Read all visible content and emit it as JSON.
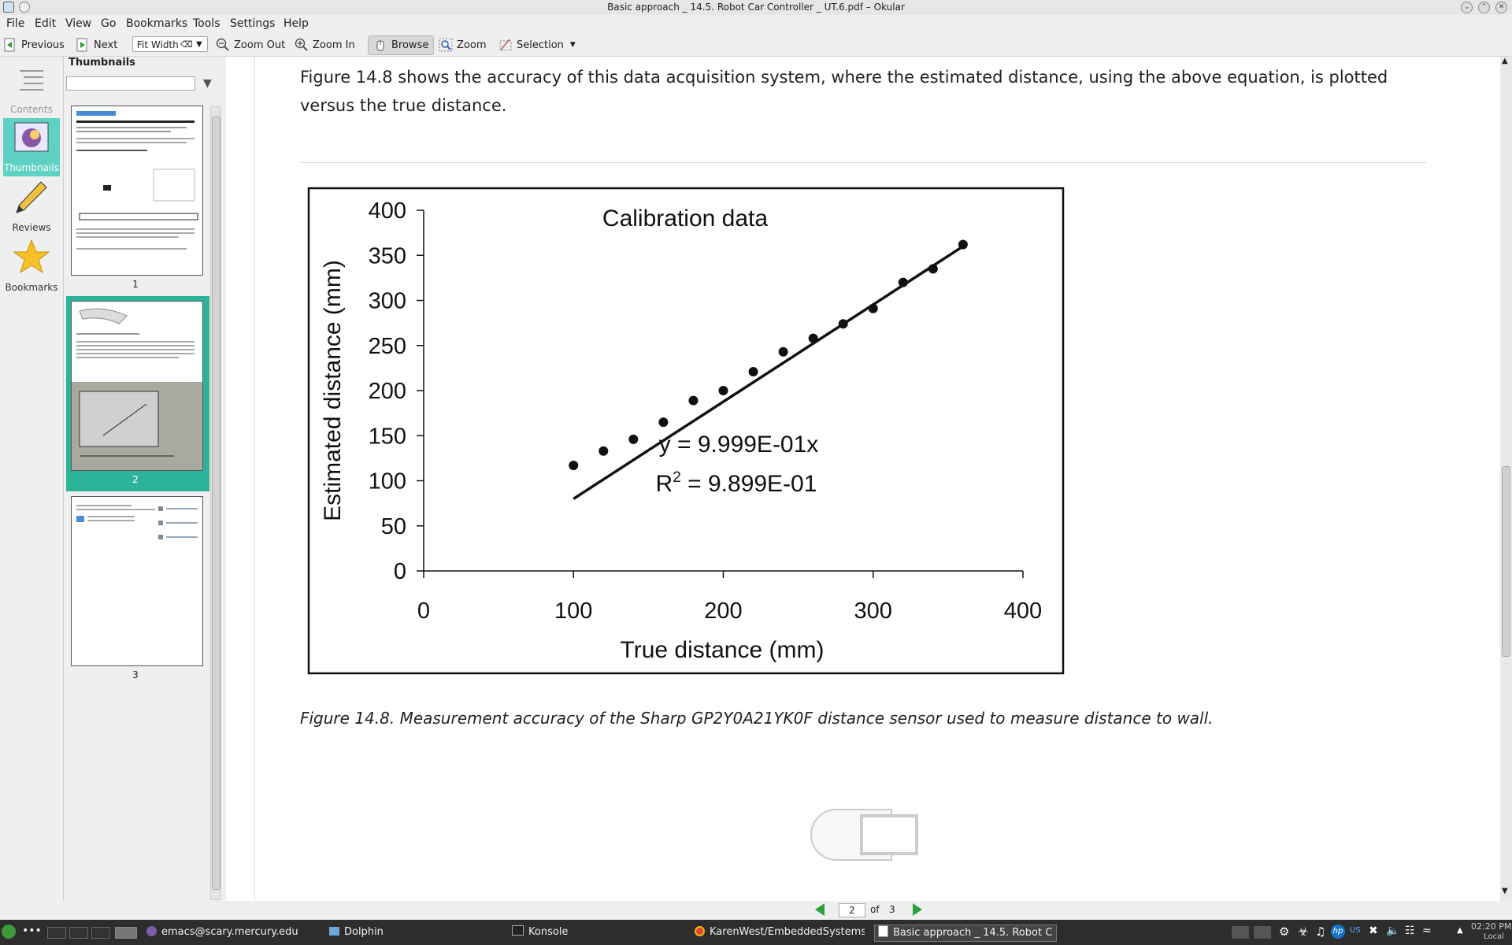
{
  "window": {
    "title": "Basic approach _ 14.5. Robot Car Controller _ UT.6.pdf – Okular"
  },
  "menu": [
    {
      "label": "File"
    },
    {
      "label": "Edit"
    },
    {
      "label": "View"
    },
    {
      "label": "Go"
    },
    {
      "label": "Bookmarks"
    },
    {
      "label": "Tools"
    },
    {
      "label": "Settings"
    },
    {
      "label": "Help"
    }
  ],
  "toolbar": {
    "previous_label": "Previous",
    "next_label": "Next",
    "zoom_mode": "Fit Width",
    "zoom_out_label": "Zoom Out",
    "zoom_in_label": "Zoom In",
    "browse_label": "Browse",
    "zoom_label": "Zoom",
    "selection_label": "Selection"
  },
  "sidebar": {
    "items": [
      {
        "label": "Contents",
        "icon": "contents-icon"
      },
      {
        "label": "Thumbnails",
        "icon": "thumbnails-icon",
        "active": true
      },
      {
        "label": "Reviews",
        "icon": "pencil-icon"
      },
      {
        "label": "Bookmarks",
        "icon": "star-icon"
      }
    ]
  },
  "thumbnails": {
    "title": "Thumbnails",
    "pages": [
      {
        "number": "1"
      },
      {
        "number": "2",
        "active": true
      },
      {
        "number": "3"
      }
    ]
  },
  "document": {
    "paragraph": "Figure 14.8 shows the accuracy of this data acquisition system, where the estimated distance, using the above equation, is plotted versus the true distance.",
    "caption": "Figure 14.8. Measurement accuracy of the Sharp GP2Y0A21YK0F distance sensor used to measure distance to wall."
  },
  "chart_data": {
    "type": "scatter",
    "title": "Calibration data",
    "xlabel": "True distance (mm)",
    "ylabel": "Estimated distance (mm)",
    "xlim": [
      0,
      400
    ],
    "ylim": [
      0,
      400
    ],
    "xticks": [
      "0",
      "100",
      "200",
      "300",
      "400"
    ],
    "yticks": [
      "0",
      "50",
      "100",
      "150",
      "200",
      "250",
      "300",
      "350",
      "400"
    ],
    "points": [
      [
        100,
        117
      ],
      [
        120,
        133
      ],
      [
        140,
        146
      ],
      [
        160,
        165
      ],
      [
        180,
        189
      ],
      [
        200,
        200
      ],
      [
        220,
        221
      ],
      [
        240,
        243
      ],
      [
        260,
        258
      ],
      [
        280,
        274
      ],
      [
        300,
        291
      ],
      [
        320,
        320
      ],
      [
        340,
        335
      ],
      [
        360,
        362
      ]
    ],
    "fit_line": {
      "slope": 0.9999,
      "x_range": [
        100,
        360
      ]
    },
    "equation": "y = 9.999E-01x",
    "r2_prefix": "R",
    "r2_sup": "2",
    "r2_value": " = 9.899E-01",
    "grid": false
  },
  "pagenav": {
    "current": "2",
    "of": "of",
    "total": "3"
  },
  "taskbar": {
    "tasks": [
      {
        "label": "emacs@scary.mercury.edu"
      },
      {
        "label": "Dolphin"
      },
      {
        "label": "Konsole"
      },
      {
        "label": "KarenWest/EmbeddedSystems_"
      },
      {
        "label": "Basic approach _ 14.5. Robot C",
        "active": true
      }
    ],
    "clock_time": "02:20 PM",
    "clock_zone": "Local",
    "keyboard_layout": "US"
  }
}
